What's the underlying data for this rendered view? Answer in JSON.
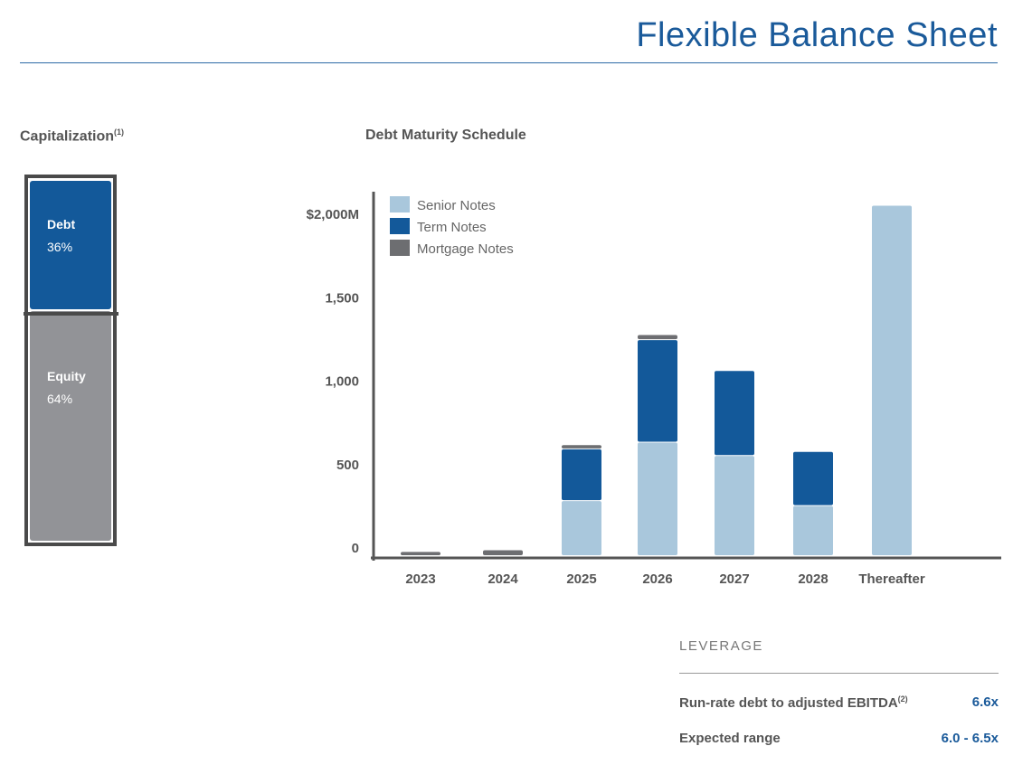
{
  "header": {
    "title": "Flexible Balance Sheet"
  },
  "capitalization": {
    "title": "Capitalization",
    "footnote": "(1)",
    "segments": [
      {
        "label": "Debt",
        "percent_label": "36%",
        "value": 36,
        "color": "#13599a"
      },
      {
        "label": "Equity",
        "percent_label": "64%",
        "value": 64,
        "color": "#929397"
      }
    ]
  },
  "chart_data": {
    "type": "bar",
    "stacked": true,
    "title": "Debt Maturity Schedule",
    "categories": [
      "2023",
      "2024",
      "2025",
      "2026",
      "2027",
      "2028",
      "Thereafter"
    ],
    "series": [
      {
        "name": "Senior Notes",
        "color": "#a9c7dc",
        "values": [
          0,
          0,
          330,
          680,
          600,
          300,
          2100
        ]
      },
      {
        "name": "Term Notes",
        "color": "#13599a",
        "values": [
          0,
          0,
          310,
          615,
          510,
          325,
          0
        ]
      },
      {
        "name": "Mortgage Notes",
        "color": "#6d6e71",
        "values": [
          25,
          35,
          25,
          30,
          0,
          0,
          0
        ]
      }
    ],
    "yticks": [
      {
        "value": 0,
        "label": "0"
      },
      {
        "value": 500,
        "label": "500"
      },
      {
        "value": 1000,
        "label": "1,000"
      },
      {
        "value": 1500,
        "label": "1,500"
      },
      {
        "value": 2000,
        "label": "$2,000M"
      }
    ],
    "ylim": [
      0,
      2200
    ],
    "legend": "top-left",
    "grid": false
  },
  "leverage": {
    "title": "LEVERAGE",
    "rows": [
      {
        "label": "Run-rate debt to adjusted EBITDA",
        "footnote": "(2)",
        "value": "6.6x"
      },
      {
        "label": "Expected range",
        "value": "6.0 - 6.5x"
      }
    ]
  }
}
